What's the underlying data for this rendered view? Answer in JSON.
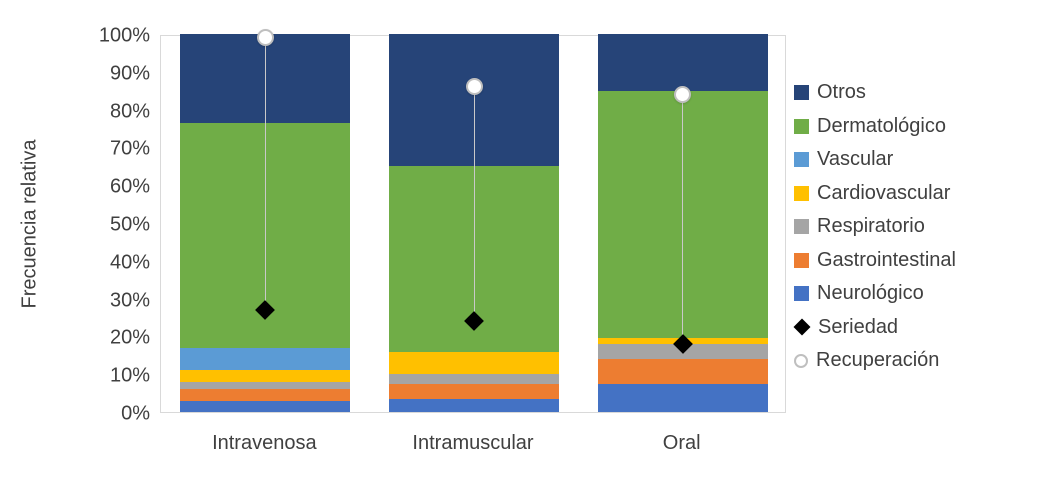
{
  "chart_data": {
    "type": "bar",
    "stacked": true,
    "title": "",
    "xlabel": "",
    "ylabel": "Frecuencia relativa",
    "ylim": [
      0,
      100
    ],
    "yticks": [
      "0%",
      "10%",
      "20%",
      "30%",
      "40%",
      "50%",
      "60%",
      "70%",
      "80%",
      "90%",
      "100%"
    ],
    "grid": false,
    "legend_position": "right",
    "categories": [
      "Intravenosa",
      "Intramuscular",
      "Oral"
    ],
    "series": [
      {
        "name": "Neurológico",
        "color": "#4472C4",
        "values": [
          3,
          3.5,
          7.5
        ]
      },
      {
        "name": "Gastrointestinal",
        "color": "#ED7D31",
        "values": [
          3,
          4,
          6.5
        ]
      },
      {
        "name": "Respiratorio",
        "color": "#A5A5A5",
        "values": [
          2,
          2.5,
          4
        ]
      },
      {
        "name": "Cardiovascular",
        "color": "#FFC000",
        "values": [
          3,
          6,
          1.5
        ]
      },
      {
        "name": "Vascular",
        "color": "#5B9BD5",
        "values": [
          6,
          0,
          0
        ]
      },
      {
        "name": "Dermatológico",
        "color": "#70AD47",
        "values": [
          59.5,
          49,
          65.5
        ]
      },
      {
        "name": "Otros",
        "color": "#264478",
        "values": [
          23.5,
          35,
          15
        ]
      }
    ],
    "markers": [
      {
        "name": "Seriedad",
        "shape": "diamond",
        "color": "#000000",
        "values": [
          27,
          24,
          18
        ]
      },
      {
        "name": "Recuperación",
        "shape": "circle",
        "color": "#FFFFFF",
        "values": [
          99,
          86,
          84
        ]
      }
    ],
    "legend": [
      "Otros",
      "Dermatológico",
      "Vascular",
      "Cardiovascular",
      "Respiratorio",
      "Gastrointestinal",
      "Neurológico",
      "Seriedad",
      "Recuperación"
    ]
  }
}
